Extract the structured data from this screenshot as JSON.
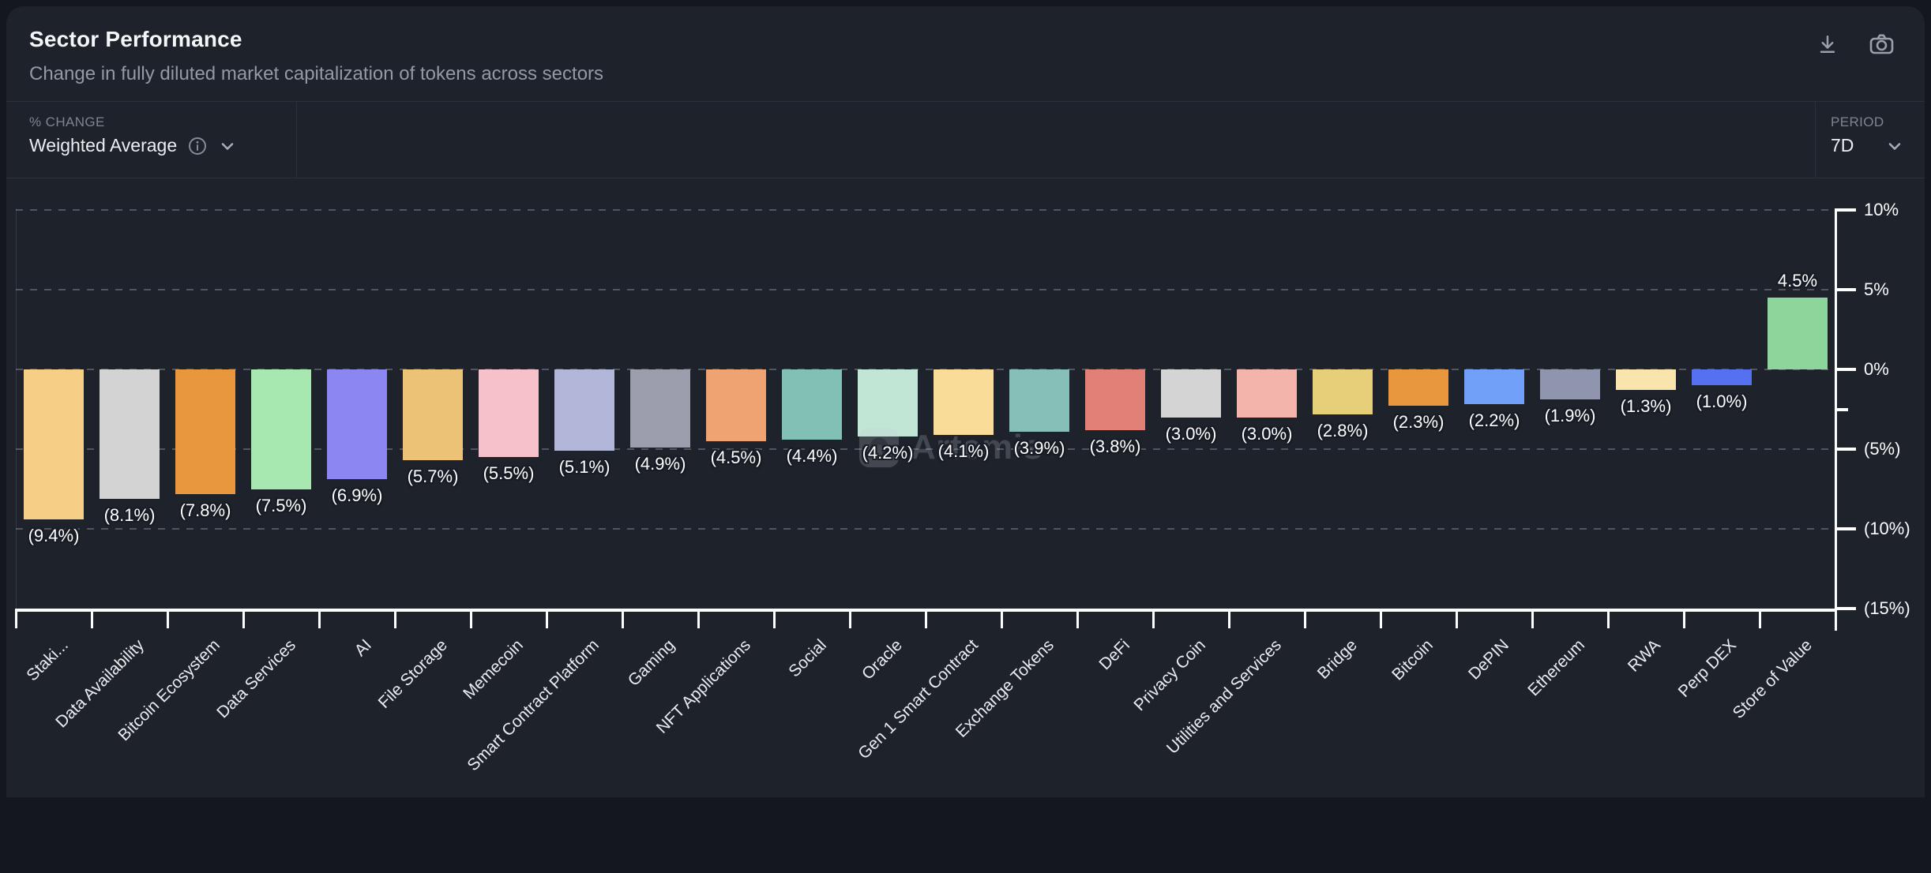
{
  "header": {
    "title": "Sector Performance",
    "subtitle": "Change in fully diluted market capitalization of tokens across sectors"
  },
  "toolbar": {
    "metric_label": "% CHANGE",
    "metric_value": "Weighted Average",
    "period_label": "PERIOD",
    "period_value": "7D"
  },
  "watermark": {
    "text": "Artemis"
  },
  "chart_data": {
    "type": "bar",
    "title": "Sector Performance",
    "categories": [
      "Staki...",
      "Data Availability",
      "Bitcoin Ecosystem",
      "Data Services",
      "AI",
      "File Storage",
      "Memecoin",
      "Smart Contract Platform",
      "Gaming",
      "NFT Applications",
      "Social",
      "Oracle",
      "Gen 1 Smart Contract",
      "Exchange Tokens",
      "DeFi",
      "Privacy Coin",
      "Utilities and Services",
      "Bridge",
      "Bitcoin",
      "DePIN",
      "Ethereum",
      "RWA",
      "Perp DEX",
      "Store of Value"
    ],
    "values": [
      -9.4,
      -8.1,
      -7.8,
      -7.5,
      -6.9,
      -5.7,
      -5.5,
      -5.1,
      -4.9,
      -4.5,
      -4.4,
      -4.2,
      -4.1,
      -3.9,
      -3.8,
      -3.0,
      -3.0,
      -2.8,
      -2.3,
      -2.2,
      -1.9,
      -1.3,
      -1.0,
      4.5
    ],
    "bar_labels": [
      "(9.4%)",
      "(8.1%)",
      "(7.8%)",
      "(7.5%)",
      "(6.9%)",
      "(5.7%)",
      "(5.5%)",
      "(5.1%)",
      "(4.9%)",
      "(4.5%)",
      "(4.4%)",
      "(4.2%)",
      "(4.1%)",
      "(3.9%)",
      "(3.8%)",
      "(3.0%)",
      "(3.0%)",
      "(2.8%)",
      "(2.3%)",
      "(2.2%)",
      "(1.9%)",
      "(1.3%)",
      "(1.0%)",
      "4.5%"
    ],
    "bar_colors": [
      "#F6CE86",
      "#D3D3D4",
      "#E8973D",
      "#A7E8B0",
      "#8C86F2",
      "#EBC276",
      "#F6C1CB",
      "#B2B6D9",
      "#9C9DAD",
      "#F0A372",
      "#82BFB4",
      "#C2E6D6",
      "#F9DC97",
      "#85BFB8",
      "#E08076",
      "#D4D4D5",
      "#F3B4AC",
      "#E7CE79",
      "#E9973C",
      "#70A0F8",
      "#9095AF",
      "#FAE4AE",
      "#5570F1",
      "#8CD59B"
    ],
    "y_ticks": [
      {
        "label": "10%",
        "value": 10
      },
      {
        "label": "5%",
        "value": 5
      },
      {
        "label": "0%",
        "value": 0
      },
      {
        "label": "(5%)",
        "value": -5
      },
      {
        "label": "(10%)",
        "value": -10
      },
      {
        "label": "(15%)",
        "value": -15
      }
    ],
    "minor_tick_value": -2.5,
    "ylim": [
      -15,
      10
    ],
    "grid": "horizontal-dashed",
    "axis_position": "right",
    "value_label_format": "negative values shown in parentheses",
    "xlabel": "",
    "ylabel": "% change"
  }
}
